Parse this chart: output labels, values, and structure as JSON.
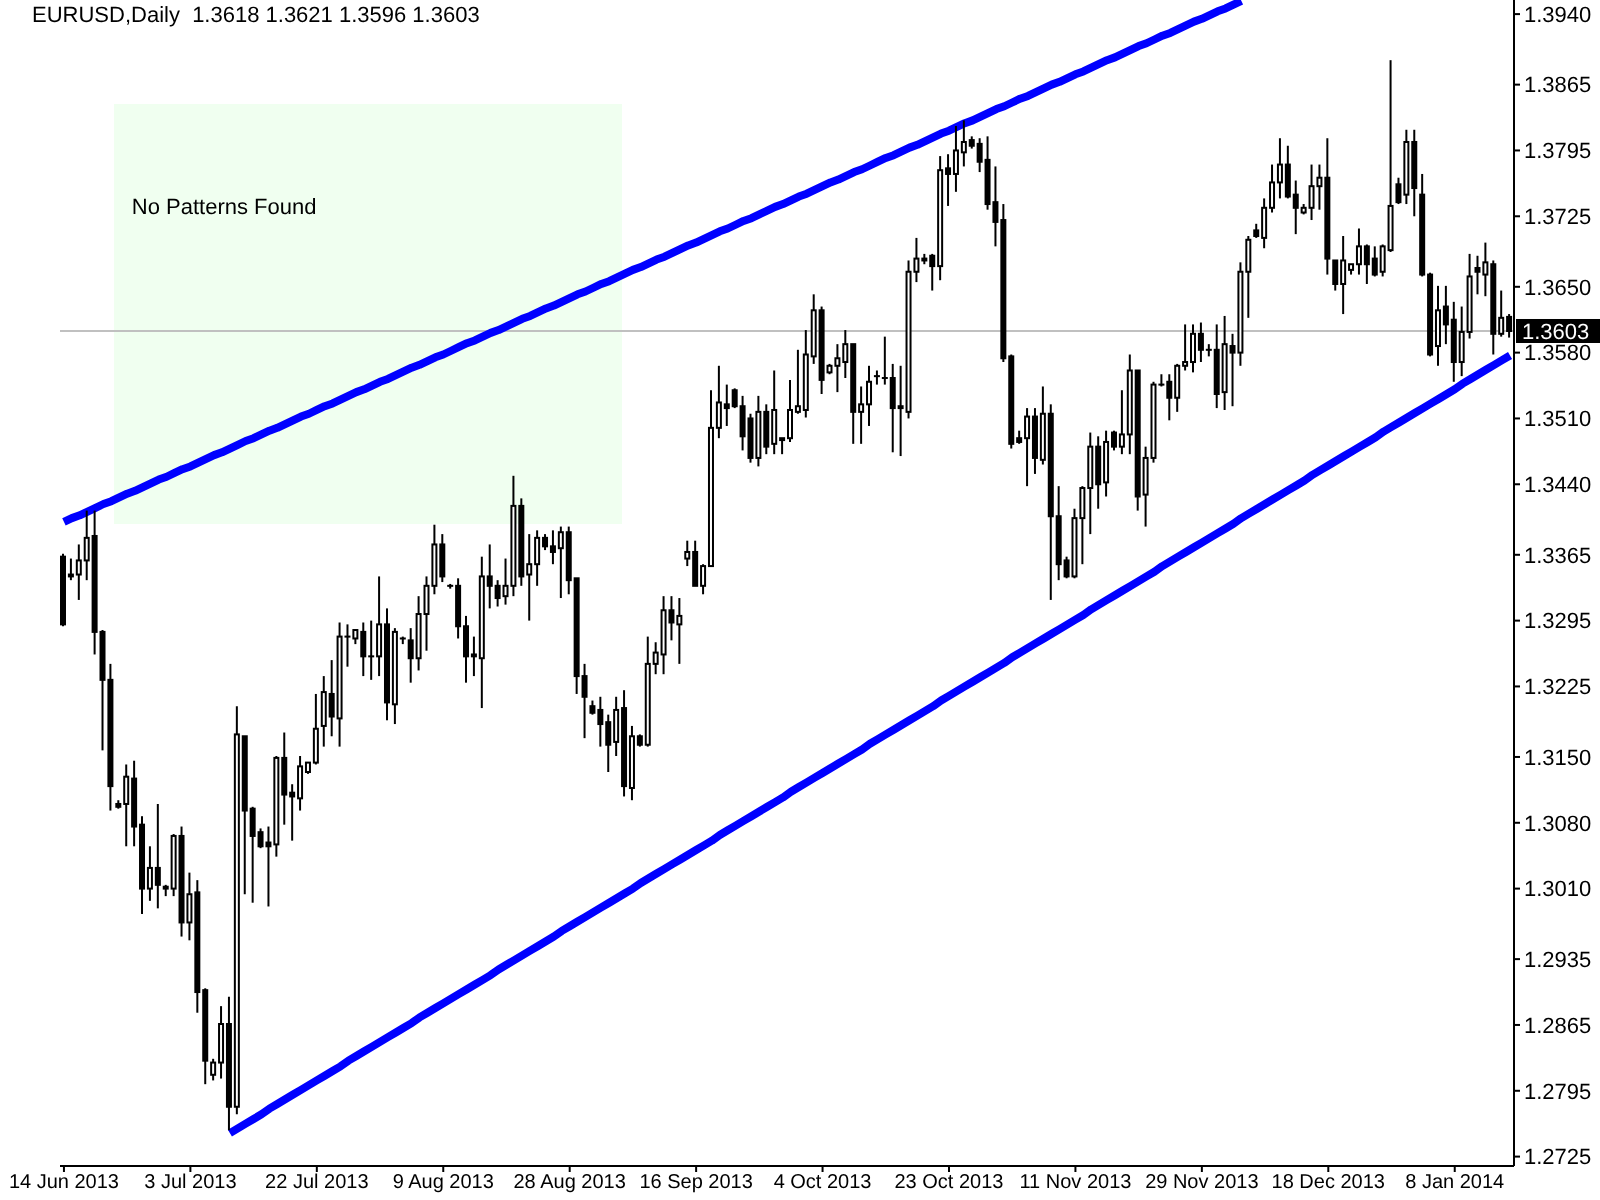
{
  "chart_data": {
    "type": "candlestick",
    "title": "EURUSD,Daily  1.3618 1.3621 1.3596 1.3603",
    "color": "#000000",
    "categories": [
      "14 Jun 2013",
      null,
      null,
      null,
      null,
      null,
      null,
      null,
      null,
      null,
      null,
      null,
      null,
      null,
      null,
      null,
      "3 Jul 2013",
      null,
      null,
      null,
      null,
      null,
      null,
      null,
      null,
      null,
      null,
      null,
      null,
      null,
      null,
      null,
      "22 Jul 2013",
      null,
      null,
      null,
      null,
      null,
      null,
      null,
      null,
      null,
      null,
      null,
      null,
      null,
      null,
      null,
      "9 Aug 2013",
      null,
      null,
      null,
      null,
      null,
      null,
      null,
      null,
      null,
      null,
      null,
      null,
      null,
      null,
      null,
      "28 Aug 2013",
      null,
      null,
      null,
      null,
      null,
      null,
      null,
      null,
      null,
      null,
      null,
      null,
      null,
      null,
      null,
      "16 Sep 2013",
      null,
      null,
      null,
      null,
      null,
      null,
      null,
      null,
      null,
      null,
      null,
      null,
      null,
      null,
      null,
      "4 Oct 2013",
      null,
      null,
      null,
      null,
      null,
      null,
      null,
      null,
      null,
      null,
      null,
      null,
      null,
      null,
      null,
      "23 Oct 2013",
      null,
      null,
      null,
      null,
      null,
      null,
      null,
      null,
      null,
      null,
      null,
      null,
      null,
      null,
      null,
      "11 Nov 2013",
      null,
      null,
      null,
      null,
      null,
      null,
      null,
      null,
      null,
      null,
      null,
      null,
      null,
      null,
      null,
      "29 Nov 2013",
      null,
      null,
      null,
      null,
      null,
      null,
      null,
      null,
      null,
      null,
      null,
      null,
      null,
      null,
      null,
      "18 Dec 2013",
      null,
      null,
      null,
      null,
      null,
      null,
      null,
      null,
      null,
      null,
      null,
      null,
      null,
      null,
      null,
      "8 Jan 2014",
      null,
      null,
      null,
      null,
      null,
      null,
      null
    ],
    "ohlc": [
      [
        1.3363,
        1.3366,
        1.3289,
        1.3291
      ],
      [
        1.3344,
        1.3361,
        1.3338,
        1.3342
      ],
      [
        1.3344,
        1.3376,
        1.3317,
        1.3359
      ],
      [
        1.3359,
        1.3412,
        1.3338,
        1.3383
      ],
      [
        1.3385,
        1.3412,
        1.3259,
        1.3283
      ],
      [
        1.3283,
        1.3285,
        1.3157,
        1.3232
      ],
      [
        1.3232,
        1.3249,
        1.3093,
        1.3119
      ],
      [
        1.31,
        1.3104,
        1.3095,
        1.3097
      ],
      [
        1.31,
        1.3142,
        1.3055,
        1.3129
      ],
      [
        1.3127,
        1.3146,
        1.3055,
        1.3076
      ],
      [
        1.3078,
        1.3087,
        1.2983,
        1.301
      ],
      [
        1.301,
        1.3055,
        1.2997,
        1.3032
      ],
      [
        1.3032,
        1.31,
        1.2989,
        1.3014
      ],
      [
        1.3012,
        1.3014,
        1.3002,
        1.301
      ],
      [
        1.301,
        1.3068,
        1.3002,
        1.3066
      ],
      [
        1.3066,
        1.3076,
        1.2959,
        1.2974
      ],
      [
        1.2974,
        1.3027,
        1.2955,
        1.3004
      ],
      [
        1.3006,
        1.3019,
        1.2878,
        1.29
      ],
      [
        1.2902,
        1.2904,
        1.2802,
        1.2827
      ],
      [
        1.2812,
        1.2829,
        1.2806,
        1.2825
      ],
      [
        1.2825,
        1.2885,
        1.2808,
        1.2866
      ],
      [
        1.2866,
        1.2895,
        1.2753,
        1.2778
      ],
      [
        1.2778,
        1.3204,
        1.277,
        1.3174
      ],
      [
        1.3172,
        1.3172,
        1.3004,
        1.3093
      ],
      [
        1.3095,
        1.3097,
        1.2995,
        1.3066
      ],
      [
        1.307,
        1.3074,
        1.3053,
        1.3055
      ],
      [
        1.3059,
        1.3076,
        1.2991,
        1.3055
      ],
      [
        1.3057,
        1.3151,
        1.3044,
        1.3149
      ],
      [
        1.3149,
        1.3176,
        1.3078,
        1.311
      ],
      [
        1.3112,
        1.3121,
        1.3061,
        1.3108
      ],
      [
        1.3106,
        1.3151,
        1.3093,
        1.314
      ],
      [
        1.3134,
        1.3144,
        1.3132,
        1.3144
      ],
      [
        1.3144,
        1.3217,
        1.3142,
        1.318
      ],
      [
        1.3183,
        1.3236,
        1.3161,
        1.3219
      ],
      [
        1.3217,
        1.3253,
        1.3172,
        1.3193
      ],
      [
        1.3191,
        1.3293,
        1.3161,
        1.3278
      ],
      [
        1.3278,
        1.3291,
        1.3246,
        1.3278
      ],
      [
        1.3276,
        1.3285,
        1.327,
        1.3285
      ],
      [
        1.3283,
        1.3293,
        1.3236,
        1.3257
      ],
      [
        1.3257,
        1.3295,
        1.3232,
        1.3257
      ],
      [
        1.3257,
        1.3342,
        1.3236,
        1.3291
      ],
      [
        1.3291,
        1.3308,
        1.3189,
        1.3208
      ],
      [
        1.3206,
        1.3287,
        1.3185,
        1.3283
      ],
      [
        1.3276,
        1.3278,
        1.327,
        1.3276
      ],
      [
        1.3274,
        1.3287,
        1.3229,
        1.3255
      ],
      [
        1.3255,
        1.3321,
        1.3242,
        1.3302
      ],
      [
        1.3302,
        1.3342,
        1.3263,
        1.3332
      ],
      [
        1.3332,
        1.3397,
        1.3323,
        1.3376
      ],
      [
        1.3376,
        1.3387,
        1.3336,
        1.3342
      ],
      [
        1.3332,
        1.3334,
        1.3329,
        1.3332
      ],
      [
        1.3332,
        1.334,
        1.3276,
        1.3289
      ],
      [
        1.3289,
        1.33,
        1.3229,
        1.3257
      ],
      [
        1.3259,
        1.3278,
        1.3236,
        1.3257
      ],
      [
        1.3255,
        1.3363,
        1.3202,
        1.3342
      ],
      [
        1.3342,
        1.3376,
        1.3308,
        1.3332
      ],
      [
        1.3332,
        1.3338,
        1.331,
        1.3319
      ],
      [
        1.3321,
        1.3361,
        1.3312,
        1.3332
      ],
      [
        1.3332,
        1.3449,
        1.3321,
        1.3417
      ],
      [
        1.3417,
        1.3425,
        1.3332,
        1.3342
      ],
      [
        1.3344,
        1.3387,
        1.3295,
        1.3355
      ],
      [
        1.3355,
        1.3391,
        1.3332,
        1.3383
      ],
      [
        1.3383,
        1.3387,
        1.337,
        1.3374
      ],
      [
        1.3374,
        1.3391,
        1.3355,
        1.3368
      ],
      [
        1.3372,
        1.3395,
        1.3319,
        1.3389
      ],
      [
        1.3389,
        1.3395,
        1.3323,
        1.3338
      ],
      [
        1.334,
        1.334,
        1.3217,
        1.3236
      ],
      [
        1.3236,
        1.3249,
        1.317,
        1.3214
      ],
      [
        1.3204,
        1.321,
        1.3195,
        1.3197
      ],
      [
        1.32,
        1.3214,
        1.3161,
        1.3185
      ],
      [
        1.3187,
        1.3195,
        1.3134,
        1.3163
      ],
      [
        1.3166,
        1.3214,
        1.3151,
        1.32
      ],
      [
        1.3202,
        1.3221,
        1.3108,
        1.3119
      ],
      [
        1.3117,
        1.3183,
        1.3104,
        1.3172
      ],
      [
        1.3172,
        1.3174,
        1.3161,
        1.3163
      ],
      [
        1.3163,
        1.3278,
        1.3161,
        1.3249
      ],
      [
        1.3249,
        1.3272,
        1.3238,
        1.3261
      ],
      [
        1.3259,
        1.3321,
        1.3238,
        1.3306
      ],
      [
        1.3306,
        1.3321,
        1.3274,
        1.3293
      ],
      [
        1.3291,
        1.3319,
        1.3249,
        1.33
      ],
      [
        1.3361,
        1.338,
        1.3353,
        1.3368
      ],
      [
        1.3368,
        1.338,
        1.3332,
        1.3332
      ],
      [
        1.3332,
        1.3355,
        1.3323,
        1.3353
      ],
      [
        1.3353,
        1.354,
        1.3353,
        1.35
      ],
      [
        1.35,
        1.3566,
        1.3489,
        1.3527
      ],
      [
        1.3525,
        1.3546,
        1.3502,
        1.3521
      ],
      [
        1.354,
        1.3542,
        1.3521,
        1.3523
      ],
      [
        1.3523,
        1.3534,
        1.3476,
        1.3491
      ],
      [
        1.351,
        1.3515,
        1.3463,
        1.3468
      ],
      [
        1.3468,
        1.3534,
        1.3459,
        1.3517
      ],
      [
        1.3517,
        1.3525,
        1.3472,
        1.348
      ],
      [
        1.3483,
        1.3561,
        1.3472,
        1.3519
      ],
      [
        1.3489,
        1.3489,
        1.3472,
        1.3487
      ],
      [
        1.3489,
        1.3551,
        1.3485,
        1.3519
      ],
      [
        1.3517,
        1.3583,
        1.3515,
        1.3523
      ],
      [
        1.3519,
        1.3604,
        1.3511,
        1.3578
      ],
      [
        1.3576,
        1.3642,
        1.3568,
        1.3625
      ],
      [
        1.3625,
        1.3629,
        1.3536,
        1.3551
      ],
      [
        1.3559,
        1.3568,
        1.3557,
        1.3566
      ],
      [
        1.3566,
        1.3589,
        1.3538,
        1.3574
      ],
      [
        1.357,
        1.3604,
        1.3553,
        1.3589
      ],
      [
        1.3589,
        1.3589,
        1.3483,
        1.3517
      ],
      [
        1.3517,
        1.3544,
        1.3483,
        1.3525
      ],
      [
        1.3525,
        1.3566,
        1.3502,
        1.3549
      ],
      [
        1.3555,
        1.3561,
        1.3546,
        1.3555
      ],
      [
        1.3553,
        1.3597,
        1.3546,
        1.3553
      ],
      [
        1.3553,
        1.3568,
        1.3474,
        1.3521
      ],
      [
        1.3523,
        1.3566,
        1.347,
        1.3521
      ],
      [
        1.3517,
        1.3678,
        1.351,
        1.3666
      ],
      [
        1.3666,
        1.3702,
        1.3655,
        1.368
      ],
      [
        1.368,
        1.3685,
        1.3674,
        1.3678
      ],
      [
        1.3683,
        1.3685,
        1.3646,
        1.3672
      ],
      [
        1.3672,
        1.3789,
        1.3657,
        1.3774
      ],
      [
        1.3776,
        1.3791,
        1.3736,
        1.377
      ],
      [
        1.377,
        1.3821,
        1.3751,
        1.3795
      ],
      [
        1.3793,
        1.3827,
        1.3778,
        1.3804
      ],
      [
        1.3806,
        1.381,
        1.3797,
        1.38
      ],
      [
        1.3802,
        1.3808,
        1.3772,
        1.3783
      ],
      [
        1.3785,
        1.381,
        1.3732,
        1.3738
      ],
      [
        1.374,
        1.3778,
        1.3693,
        1.3719
      ],
      [
        1.3721,
        1.3738,
        1.357,
        1.3574
      ],
      [
        1.3576,
        1.3578,
        1.3478,
        1.3483
      ],
      [
        1.3489,
        1.3497,
        1.3483,
        1.3485
      ],
      [
        1.3489,
        1.3521,
        1.3438,
        1.3512
      ],
      [
        1.3512,
        1.3521,
        1.3451,
        1.3468
      ],
      [
        1.3466,
        1.3544,
        1.3461,
        1.3515
      ],
      [
        1.3515,
        1.3525,
        1.3317,
        1.3406
      ],
      [
        1.3406,
        1.3438,
        1.3338,
        1.3355
      ],
      [
        1.3359,
        1.3363,
        1.334,
        1.3342
      ],
      [
        1.3342,
        1.3414,
        1.334,
        1.3404
      ],
      [
        1.3404,
        1.3438,
        1.3355,
        1.3436
      ],
      [
        1.3436,
        1.3495,
        1.3387,
        1.348
      ],
      [
        1.348,
        1.3491,
        1.3414,
        1.344
      ],
      [
        1.3442,
        1.3497,
        1.3427,
        1.3485
      ],
      [
        1.3495,
        1.3497,
        1.3476,
        1.348
      ],
      [
        1.348,
        1.354,
        1.3472,
        1.3493
      ],
      [
        1.3493,
        1.3578,
        1.3472,
        1.3561
      ],
      [
        1.3561,
        1.3561,
        1.3412,
        1.3427
      ],
      [
        1.3429,
        1.348,
        1.3395,
        1.3468
      ],
      [
        1.3468,
        1.3549,
        1.3463,
        1.3546
      ],
      [
        1.3546,
        1.3557,
        1.3544,
        1.3546
      ],
      [
        1.3549,
        1.3557,
        1.3508,
        1.3532
      ],
      [
        1.3532,
        1.3568,
        1.3517,
        1.3566
      ],
      [
        1.3566,
        1.361,
        1.3561,
        1.357
      ],
      [
        1.357,
        1.361,
        1.3559,
        1.36
      ],
      [
        1.36,
        1.3612,
        1.357,
        1.3583
      ],
      [
        1.3583,
        1.3589,
        1.3576,
        1.3583
      ],
      [
        1.3583,
        1.361,
        1.3521,
        1.3536
      ],
      [
        1.3538,
        1.3619,
        1.3519,
        1.3589
      ],
      [
        1.3587,
        1.36,
        1.3523,
        1.358
      ],
      [
        1.358,
        1.3676,
        1.3566,
        1.3666
      ],
      [
        1.3666,
        1.3704,
        1.3617,
        1.37
      ],
      [
        1.371,
        1.3717,
        1.3702,
        1.3704
      ],
      [
        1.3702,
        1.3744,
        1.3691,
        1.3734
      ],
      [
        1.3734,
        1.378,
        1.3729,
        1.3761
      ],
      [
        1.3761,
        1.3808,
        1.3744,
        1.378
      ],
      [
        1.378,
        1.38,
        1.3744,
        1.3746
      ],
      [
        1.3748,
        1.3763,
        1.3706,
        1.3734
      ],
      [
        1.3729,
        1.3738,
        1.3727,
        1.3734
      ],
      [
        1.3734,
        1.378,
        1.3721,
        1.3757
      ],
      [
        1.3757,
        1.378,
        1.3732,
        1.3766
      ],
      [
        1.3766,
        1.3808,
        1.3663,
        1.368
      ],
      [
        1.3678,
        1.3678,
        1.3646,
        1.3653
      ],
      [
        1.3653,
        1.3704,
        1.3621,
        1.3678
      ],
      [
        1.3668,
        1.3674,
        1.3663,
        1.3674
      ],
      [
        1.3674,
        1.3712,
        1.3663,
        1.3693
      ],
      [
        1.3693,
        1.3695,
        1.3653,
        1.3674
      ],
      [
        1.368,
        1.3693,
        1.3661,
        1.3663
      ],
      [
        1.3666,
        1.3695,
        1.3661,
        1.3693
      ],
      [
        1.3689,
        1.3891,
        1.3687,
        1.3736
      ],
      [
        1.3759,
        1.3766,
        1.3738,
        1.374
      ],
      [
        1.3748,
        1.3817,
        1.3738,
        1.3804
      ],
      [
        1.3804,
        1.3817,
        1.3725,
        1.3755
      ],
      [
        1.3748,
        1.377,
        1.3661,
        1.3663
      ],
      [
        1.3663,
        1.3665,
        1.3576,
        1.3578
      ],
      [
        1.3587,
        1.3651,
        1.3566,
        1.3625
      ],
      [
        1.3629,
        1.3651,
        1.3589,
        1.361
      ],
      [
        1.3615,
        1.3634,
        1.3549,
        1.357
      ],
      [
        1.357,
        1.3629,
        1.3555,
        1.3602
      ],
      [
        1.3602,
        1.3685,
        1.3595,
        1.3661
      ],
      [
        1.367,
        1.3683,
        1.3642,
        1.3666
      ],
      [
        1.3663,
        1.3697,
        1.364,
        1.3676
      ],
      [
        1.3674,
        1.3678,
        1.3578,
        1.36
      ],
      [
        1.36,
        1.3646,
        1.3597,
        1.3617
      ],
      [
        1.3618,
        1.3621,
        1.3596,
        1.3603
      ]
    ],
    "series": [
      {
        "type": "line",
        "color": "#0000ff",
        "values": [
          1.34,
          1.3404,
          1.3407,
          1.3411,
          1.3415,
          1.3419,
          1.3422,
          1.3426,
          1.343,
          1.3433,
          1.3437,
          1.3441,
          1.3445,
          1.3448,
          1.3452,
          1.3456,
          1.3459,
          1.3463,
          1.3467,
          1.3471,
          1.3474,
          1.3478,
          1.3482,
          1.3486,
          1.3489,
          1.3493,
          1.3497,
          1.35,
          1.3504,
          1.3508,
          1.3512,
          1.3515,
          1.3519,
          1.3523,
          1.3526,
          1.353,
          1.3534,
          1.3538,
          1.3541,
          1.3545,
          1.3549,
          1.3552,
          1.3556,
          1.356,
          1.3564,
          1.3567,
          1.3571,
          1.3575,
          1.3578,
          1.3582,
          1.3586,
          1.359,
          1.3593,
          1.3597,
          1.3601,
          1.3604,
          1.3608,
          1.3612,
          1.3616,
          1.3619,
          1.3623,
          1.3627,
          1.363,
          1.3634,
          1.3638,
          1.3642,
          1.3645,
          1.3649,
          1.3653,
          1.3656,
          1.366,
          1.3664,
          1.3668,
          1.3671,
          1.3675,
          1.3679,
          1.3682,
          1.3686,
          1.369,
          1.3694,
          1.3697,
          1.3701,
          1.3705,
          1.3709,
          1.3712,
          1.3716,
          1.372,
          1.3723,
          1.3727,
          1.3731,
          1.3735,
          1.3738,
          1.3742,
          1.3746,
          1.3749,
          1.3753,
          1.3757,
          1.3761,
          1.3764,
          1.3768,
          1.3772,
          1.3775,
          1.3779,
          1.3783,
          1.3787,
          1.379,
          1.3794,
          1.3798,
          1.3801,
          1.3805,
          1.3809,
          1.3813,
          1.3816,
          1.382,
          1.3824,
          1.3827,
          1.3831,
          1.3835,
          1.3839,
          1.3842,
          1.3846,
          1.385,
          1.3853,
          1.3857,
          1.3861,
          1.3865,
          1.3868,
          1.3872,
          1.3876,
          1.3879,
          1.3883,
          1.3887,
          1.3891,
          1.3894,
          1.3898,
          1.3902,
          1.3906,
          1.3909,
          1.3913,
          1.3917,
          1.392,
          1.3924,
          1.3928,
          1.3932,
          1.3935,
          1.3939,
          1.3943,
          1.3946,
          1.395,
          1.3954,
          null,
          null,
          null,
          null,
          null,
          null,
          null,
          null,
          null,
          null,
          null,
          null,
          null,
          null,
          null,
          null,
          null,
          null,
          null,
          null,
          null,
          null,
          null,
          null,
          null,
          null,
          null,
          null,
          null,
          null,
          null,
          null,
          null,
          null
        ]
      },
      {
        "type": "line",
        "color": "#0000ff",
        "values": [
          null,
          null,
          null,
          null,
          null,
          null,
          null,
          null,
          null,
          null,
          null,
          null,
          null,
          null,
          null,
          null,
          null,
          null,
          null,
          null,
          null,
          1.275,
          1.2755,
          1.276,
          1.2765,
          1.277,
          1.2776,
          1.2781,
          1.2786,
          1.2791,
          1.2796,
          1.2801,
          1.2806,
          1.2811,
          1.2816,
          1.2821,
          1.2827,
          1.2832,
          1.2837,
          1.2842,
          1.2847,
          1.2852,
          1.2857,
          1.2862,
          1.2867,
          1.2873,
          1.2878,
          1.2883,
          1.2888,
          1.2893,
          1.2898,
          1.2903,
          1.2908,
          1.2913,
          1.2918,
          1.2924,
          1.2929,
          1.2934,
          1.2939,
          1.2944,
          1.2949,
          1.2954,
          1.2959,
          1.2965,
          1.297,
          1.2975,
          1.298,
          1.2985,
          1.299,
          1.2995,
          1.3,
          1.3005,
          1.301,
          1.3016,
          1.3021,
          1.3026,
          1.3031,
          1.3036,
          1.3041,
          1.3046,
          1.3051,
          1.3056,
          1.3061,
          1.3067,
          1.3072,
          1.3077,
          1.3082,
          1.3087,
          1.3092,
          1.3097,
          1.3102,
          1.3107,
          1.3113,
          1.3118,
          1.3123,
          1.3128,
          1.3133,
          1.3138,
          1.3143,
          1.3148,
          1.3153,
          1.3158,
          1.3164,
          1.3169,
          1.3174,
          1.3179,
          1.3184,
          1.3189,
          1.3194,
          1.3199,
          1.3204,
          1.321,
          1.3215,
          1.322,
          1.3225,
          1.323,
          1.3235,
          1.324,
          1.3245,
          1.325,
          1.3256,
          1.3261,
          1.3266,
          1.3271,
          1.3276,
          1.3281,
          1.3286,
          1.3291,
          1.3296,
          1.3301,
          1.3307,
          1.3312,
          1.3317,
          1.3322,
          1.3327,
          1.3332,
          1.3337,
          1.3342,
          1.3347,
          1.3353,
          1.3358,
          1.3363,
          1.3368,
          1.3373,
          1.3378,
          1.3383,
          1.3388,
          1.3393,
          1.3398,
          1.3404,
          1.3409,
          1.3414,
          1.3419,
          1.3424,
          1.3429,
          1.3434,
          1.3439,
          1.3444,
          1.345,
          1.3455,
          1.346,
          1.3465,
          1.347,
          1.3475,
          1.348,
          1.3485,
          1.349,
          1.3496,
          1.3501,
          1.3506,
          1.3511,
          1.3516,
          1.3521,
          1.3526,
          1.3531,
          1.3536,
          1.3541,
          1.3547,
          1.3552,
          1.3557,
          1.3562,
          1.3567,
          1.3572,
          1.3577
        ]
      }
    ],
    "ylim": [
      1.2715,
      1.3955
    ],
    "yticks": [
      {
        "value": 1.394,
        "label": "1.3940"
      },
      {
        "value": 1.3865,
        "label": "1.3865"
      },
      {
        "value": 1.3795,
        "label": "1.3795"
      },
      {
        "value": 1.3725,
        "label": "1.3725"
      },
      {
        "value": 1.365,
        "label": "1.3650"
      },
      {
        "value": 1.358,
        "label": "1.3580"
      },
      {
        "value": 1.351,
        "label": "1.3510"
      },
      {
        "value": 1.344,
        "label": "1.3440"
      },
      {
        "value": 1.3365,
        "label": "1.3365"
      },
      {
        "value": 1.3295,
        "label": "1.3295"
      },
      {
        "value": 1.3225,
        "label": "1.3225"
      },
      {
        "value": 1.315,
        "label": "1.3150"
      },
      {
        "value": 1.308,
        "label": "1.3080"
      },
      {
        "value": 1.301,
        "label": "1.3010"
      },
      {
        "value": 1.2935,
        "label": "1.2935"
      },
      {
        "value": 1.2865,
        "label": "1.2865"
      },
      {
        "value": 1.2795,
        "label": "1.2795"
      },
      {
        "value": 1.2725,
        "label": "1.2725"
      }
    ],
    "ref_lines": [
      {
        "axis": "y",
        "value": 1.3603,
        "label": "1.3603",
        "color": "#c0c0c0"
      }
    ],
    "annotations": [
      "No Patterns Found"
    ]
  }
}
